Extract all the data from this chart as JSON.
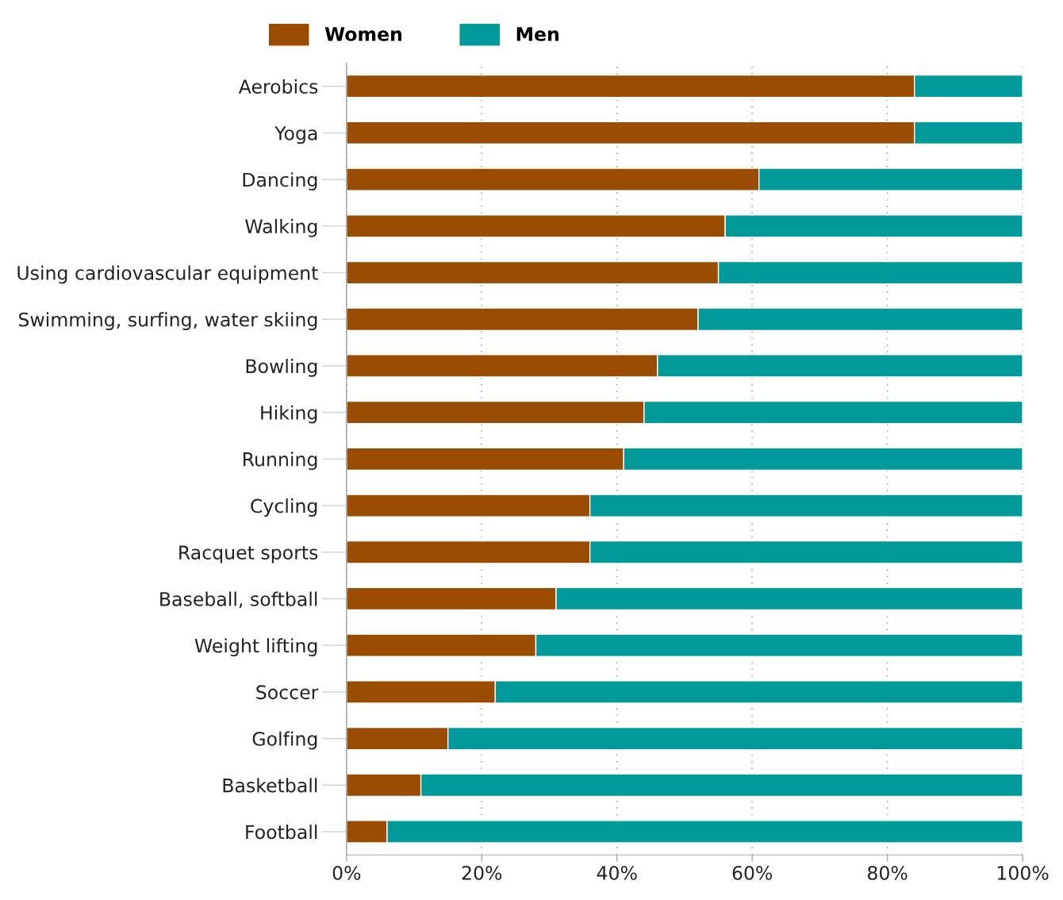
{
  "chart_data": {
    "type": "bar",
    "orientation": "horizontal",
    "stacked": true,
    "categories": [
      "Aerobics",
      "Yoga",
      "Dancing",
      "Walking",
      "Using cardiovascular equipment",
      "Swimming, surfing, water skiing",
      "Bowling",
      "Hiking",
      "Running",
      "Cycling",
      "Racquet sports",
      "Baseball, softball",
      "Weight lifting",
      "Soccer",
      "Golfing",
      "Basketball",
      "Football"
    ],
    "series": [
      {
        "name": "Women",
        "color": "#9a4c00",
        "values": [
          84,
          84,
          61,
          56,
          55,
          52,
          46,
          44,
          41,
          36,
          36,
          31,
          28,
          22,
          15,
          11,
          6
        ]
      },
      {
        "name": "Men",
        "color": "#009a9a",
        "values": [
          16,
          16,
          39,
          44,
          45,
          48,
          54,
          56,
          59,
          64,
          64,
          69,
          72,
          78,
          85,
          89,
          94
        ]
      }
    ],
    "xlim": [
      0,
      100
    ],
    "xticks": [
      {
        "value": 0,
        "label": "0%"
      },
      {
        "value": 20,
        "label": "20%"
      },
      {
        "value": 40,
        "label": "40%"
      },
      {
        "value": 60,
        "label": "60%"
      },
      {
        "value": 80,
        "label": "80%"
      },
      {
        "value": 100,
        "label": "100%"
      }
    ],
    "grid": "x",
    "legend": "top"
  }
}
